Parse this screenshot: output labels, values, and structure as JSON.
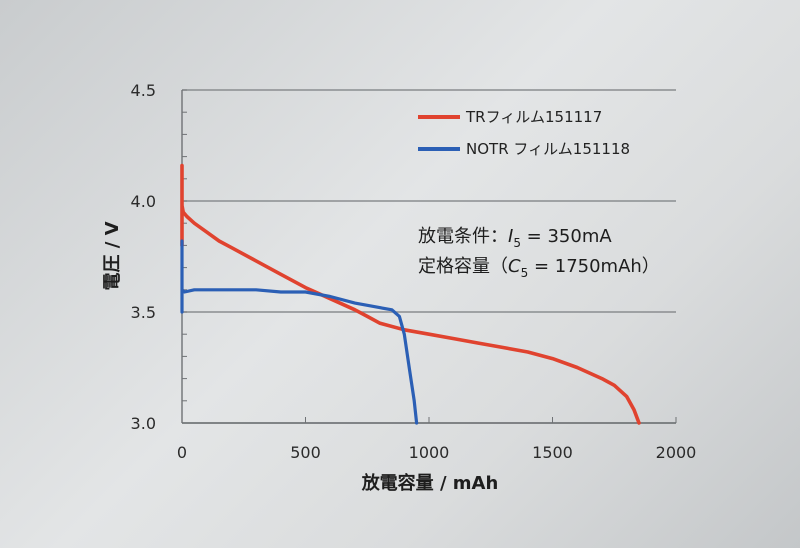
{
  "chart_data": {
    "type": "line",
    "xlabel": "放電容量 / mAh",
    "ylabel": "電圧 / V",
    "xlim": [
      0,
      2000
    ],
    "ylim": [
      3.0,
      4.5
    ],
    "x_ticks": [
      0,
      500,
      1000,
      1500,
      2000
    ],
    "y_ticks": [
      3.0,
      3.5,
      4.0,
      4.5
    ],
    "y_tick_labels": [
      "3.0",
      "3.5",
      "4.0",
      "4.5"
    ],
    "grid": "horizontal",
    "legend_placement": "top-right",
    "colors": {
      "red": "#e0432f",
      "blue": "#2b5fb5"
    },
    "annotations": {
      "line1": {
        "prefix": "放電条件：",
        "var": "I",
        "sub": "5",
        "rest": " = 350mA"
      },
      "line2": {
        "prefix": "定格容量（",
        "var": "C",
        "sub": "5",
        "rest": "   = 1750mAh）"
      }
    },
    "series": [
      {
        "name": "TRフィルム151117",
        "color": "#e0432f",
        "x": [
          0,
          0,
          0,
          5,
          20,
          50,
          100,
          150,
          200,
          300,
          400,
          500,
          600,
          700,
          750,
          800,
          900,
          1000,
          1100,
          1200,
          1300,
          1400,
          1500,
          1600,
          1700,
          1750,
          1800,
          1830,
          1850
        ],
        "y": [
          3.8,
          4.16,
          3.98,
          3.95,
          3.93,
          3.9,
          3.86,
          3.82,
          3.79,
          3.73,
          3.67,
          3.61,
          3.56,
          3.51,
          3.48,
          3.45,
          3.42,
          3.4,
          3.38,
          3.36,
          3.34,
          3.32,
          3.29,
          3.25,
          3.2,
          3.17,
          3.12,
          3.06,
          3.0
        ]
      },
      {
        "name": "NOTR フィルム151118",
        "color": "#2b5fb5",
        "x": [
          0,
          0,
          0,
          10,
          50,
          100,
          200,
          300,
          400,
          500,
          600,
          700,
          750,
          800,
          850,
          880,
          900,
          920,
          940,
          950
        ],
        "y": [
          3.5,
          3.82,
          3.6,
          3.59,
          3.6,
          3.6,
          3.6,
          3.6,
          3.59,
          3.59,
          3.57,
          3.54,
          3.53,
          3.52,
          3.51,
          3.48,
          3.4,
          3.25,
          3.1,
          3.0
        ]
      }
    ]
  }
}
